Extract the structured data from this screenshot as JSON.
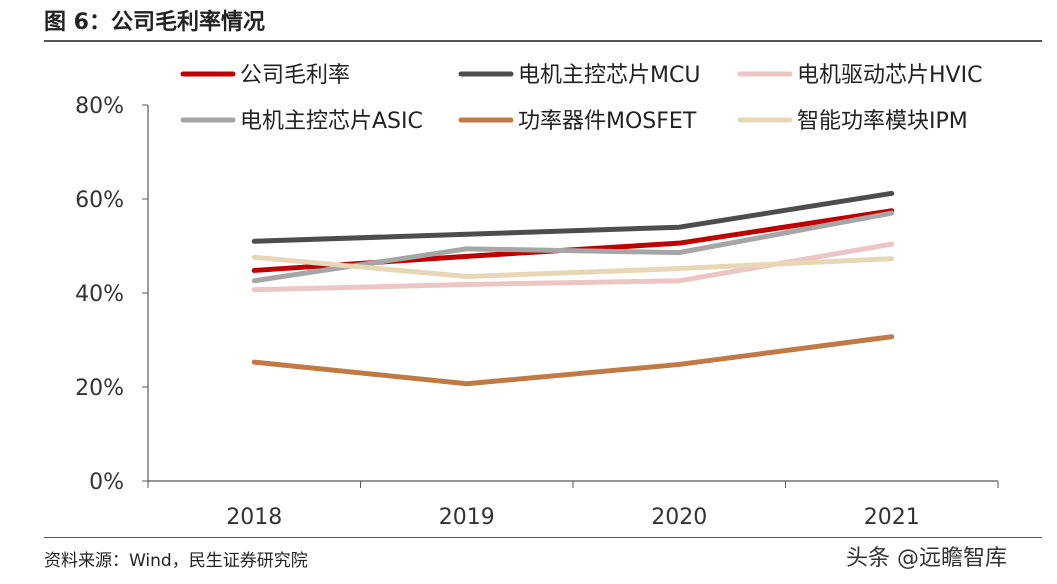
{
  "title": "图 6：公司毛利率情况",
  "source": "资料来源：Wind，民生证券研究院",
  "watermark": "头条 @远瞻智库",
  "chart_data": {
    "type": "line",
    "categories": [
      "2018",
      "2019",
      "2020",
      "2021"
    ],
    "ylim": [
      0,
      80
    ],
    "yticks": [
      "0%",
      "20%",
      "40%",
      "60%",
      "80%"
    ],
    "ytick_values": [
      0,
      20,
      40,
      60,
      80
    ],
    "legend_position": "top",
    "grid": false,
    "series": [
      {
        "name": "公司毛利率",
        "color": "#C00000",
        "values": [
          44.8,
          47.8,
          50.6,
          57.5
        ]
      },
      {
        "name": "电机主控芯片MCU",
        "color": "#4D4D4D",
        "values": [
          51.0,
          52.5,
          54.0,
          61.2
        ]
      },
      {
        "name": "电机驱动芯片HVIC",
        "color": "#EDC5C5",
        "values": [
          40.7,
          41.8,
          42.6,
          50.4
        ]
      },
      {
        "name": "电机主控芯片ASIC",
        "color": "#A6A6A6",
        "values": [
          42.6,
          49.4,
          48.6,
          57.0
        ]
      },
      {
        "name": "功率器件MOSFET",
        "color": "#C07A45",
        "values": [
          25.3,
          20.7,
          24.8,
          30.7
        ]
      },
      {
        "name": "智能功率模块IPM",
        "color": "#E8D7B6",
        "values": [
          47.6,
          43.5,
          45.2,
          47.3
        ]
      }
    ]
  }
}
